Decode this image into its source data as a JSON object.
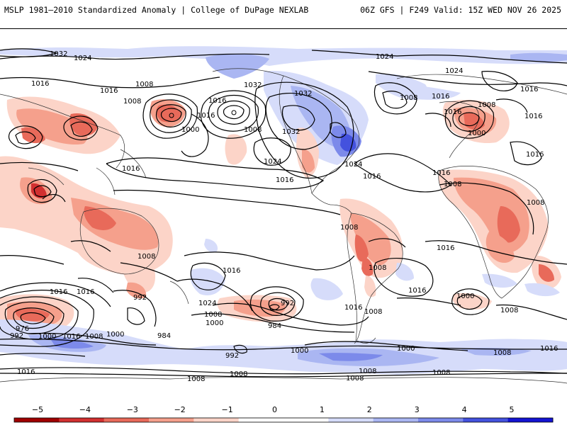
{
  "header": {
    "left_title": "MSLP 1981–2010 Standardized Anomaly | College of DuPage NEXLAB",
    "right_title": "06Z GFS | F249 Valid: 15Z WED NOV 26 2025"
  },
  "colors": {
    "neg5": "#a00000",
    "neg4": "#d23030",
    "neg3": "#e86a5a",
    "neg2": "#f5a08c",
    "neg1": "#fcd4c8",
    "neutral": "#ffffff",
    "pos1": "#d6dcfa",
    "pos2": "#aab6f2",
    "pos3": "#7c8aea",
    "pos4": "#4452de",
    "pos5": "#1414d2"
  },
  "colorbar": {
    "ticks": [
      "−5",
      "−4",
      "−3",
      "−2",
      "−1",
      "0",
      "1",
      "2",
      "3",
      "4",
      "5"
    ]
  },
  "isobar_labels": [
    "1032",
    "1024",
    "1016",
    "1016",
    "1008",
    "1008",
    "1016",
    "1000",
    "1016",
    "1008",
    "1024",
    "1016",
    "1016",
    "1032",
    "1024",
    "1016",
    "1016",
    "1032",
    "1032",
    "1024",
    "1016",
    "1024",
    "1008",
    "1016",
    "1016",
    "1008",
    "1000",
    "1016",
    "1016",
    "1008",
    "1008",
    "1008",
    "1016",
    "1008",
    "1016",
    "1016",
    "1008",
    "1024",
    "1016",
    "992",
    "1008",
    "1000",
    "992",
    "984",
    "1016",
    "1008",
    "1016",
    "1000",
    "1008",
    "1016",
    "976",
    "992",
    "1000",
    "1016",
    "1008",
    "1000",
    "992",
    "984",
    "1000",
    "1000",
    "1008",
    "1016",
    "1008",
    "1008",
    "1008",
    "1008",
    "1008"
  ]
}
